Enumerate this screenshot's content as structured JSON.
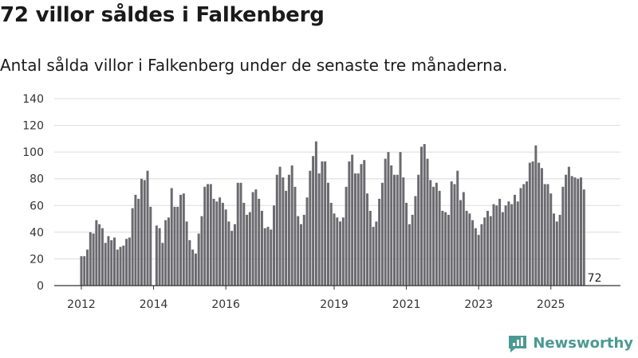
{
  "header": {
    "title": "72 villor såldes i Falkenberg",
    "subtitle": "Antal sålda villor i Falkenberg under de senaste tre månaderna."
  },
  "brand": {
    "name": "Newsworthy",
    "color": "#4a9a92"
  },
  "chart_data": {
    "type": "bar",
    "title": "72 villor såldes i Falkenberg",
    "subtitle": "Antal sålda villor i Falkenberg under de senaste tre månaderna.",
    "xlabel": "",
    "ylabel": "",
    "ylim": [
      0,
      140
    ],
    "yticks": [
      "0",
      "20",
      "40",
      "60",
      "80",
      "100",
      "120",
      "140"
    ],
    "grid": true,
    "frequency": "monthly",
    "start": "2012-01",
    "xticks": [
      {
        "label": "2012",
        "index": 0
      },
      {
        "label": "2014",
        "index": 24
      },
      {
        "label": "2016",
        "index": 48
      },
      {
        "label": "2019",
        "index": 84
      },
      {
        "label": "2021",
        "index": 108
      },
      {
        "label": "2023",
        "index": 132
      },
      {
        "label": "2025",
        "index": 156
      }
    ],
    "bar_color": "#6b6a6f",
    "highlight_color": "#3a9a8f",
    "highlight_index": 170,
    "annotation": "72",
    "values": [
      22,
      22,
      27,
      40,
      39,
      49,
      46,
      43,
      32,
      37,
      34,
      36,
      27,
      29,
      30,
      35,
      36,
      58,
      68,
      65,
      80,
      79,
      86,
      59,
      0,
      45,
      43,
      32,
      49,
      51,
      73,
      59,
      59,
      68,
      69,
      48,
      34,
      27,
      24,
      39,
      52,
      74,
      76,
      76,
      65,
      63,
      66,
      62,
      57,
      48,
      41,
      46,
      77,
      77,
      62,
      53,
      55,
      70,
      72,
      65,
      56,
      43,
      44,
      42,
      60,
      83,
      89,
      81,
      71,
      83,
      90,
      74,
      52,
      46,
      53,
      66,
      86,
      97,
      108,
      84,
      93,
      93,
      77,
      62,
      54,
      51,
      48,
      51,
      74,
      93,
      98,
      84,
      84,
      91,
      94,
      69,
      56,
      44,
      48,
      65,
      77,
      95,
      100,
      90,
      83,
      83,
      100,
      81,
      62,
      46,
      53,
      67,
      83,
      104,
      106,
      95,
      79,
      74,
      77,
      71,
      56,
      55,
      53,
      78,
      76,
      86,
      64,
      70,
      56,
      54,
      49,
      43,
      38,
      46,
      51,
      56,
      52,
      61,
      60,
      65,
      55,
      60,
      63,
      61,
      68,
      63,
      73,
      76,
      78,
      92,
      93,
      105,
      92,
      88,
      76,
      76,
      69,
      54,
      48,
      53,
      74,
      83,
      89,
      82,
      81,
      80,
      81,
      72
    ]
  }
}
